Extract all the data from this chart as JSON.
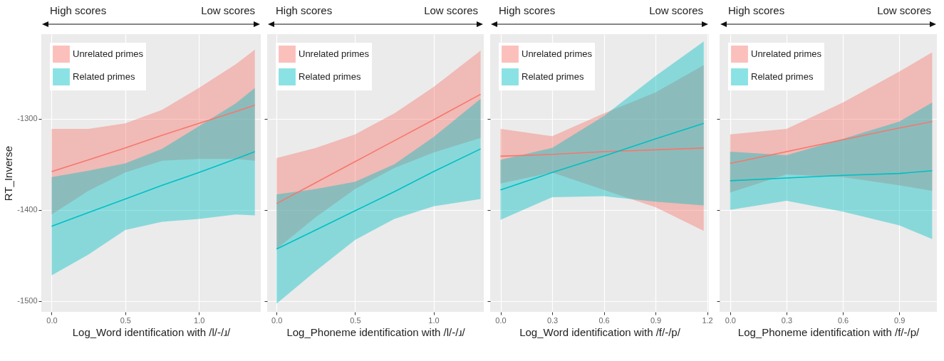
{
  "chart_data": [
    {
      "type": "line",
      "xlabel": "Log_Word identification with /l/-/ɹ/",
      "ylabel": "RT_Inverse",
      "annotations": [
        "High scores",
        "Low scores"
      ],
      "x": [
        0,
        0.25,
        0.5,
        0.75,
        1.0,
        1.25,
        1.38
      ],
      "series": [
        {
          "name": "Unrelated primes",
          "color": "#f8766d",
          "values": [
            -1358,
            -1345,
            -1332,
            -1318,
            -1305,
            -1292,
            -1285
          ],
          "upper": [
            -1311,
            -1311,
            -1305,
            -1290,
            -1266,
            -1240,
            -1224
          ],
          "lower": [
            -1405,
            -1379,
            -1359,
            -1346,
            -1344,
            -1344,
            -1346
          ]
        },
        {
          "name": "Related primes",
          "color": "#00bfc4",
          "values": [
            -1418,
            -1403,
            -1388,
            -1373,
            -1359,
            -1344,
            -1336
          ],
          "upper": [
            -1364,
            -1357,
            -1349,
            -1333,
            -1308,
            -1283,
            -1266
          ],
          "lower": [
            -1472,
            -1449,
            -1422,
            -1413,
            -1410,
            -1405,
            -1406
          ]
        }
      ],
      "xlim": [
        -0.07,
        1.42
      ],
      "xticks": [
        {
          "value": 0,
          "label": "0.0"
        },
        {
          "value": 0.5,
          "label": "0.5"
        },
        {
          "value": 1,
          "label": "1.0"
        }
      ],
      "ylim": [
        -1512,
        -1207
      ],
      "yticks": [
        -1500,
        -1400,
        -1300
      ],
      "grid": true,
      "legend": "top left"
    },
    {
      "type": "line",
      "xlabel": "Log_Phoneme identification with /l/-/ɹ/",
      "annotations": [
        "High scores",
        "Low scores"
      ],
      "x": [
        0,
        0.25,
        0.5,
        0.75,
        1.0,
        1.3
      ],
      "series": [
        {
          "name": "Unrelated primes",
          "color": "#f8766d",
          "values": [
            -1393,
            -1370,
            -1347,
            -1324,
            -1301,
            -1273
          ],
          "upper": [
            -1343,
            -1332,
            -1317,
            -1294,
            -1265,
            -1225
          ],
          "lower": [
            -1443,
            -1408,
            -1377,
            -1354,
            -1337,
            -1321
          ]
        },
        {
          "name": "Related primes",
          "color": "#00bfc4",
          "values": [
            -1443,
            -1422,
            -1401,
            -1380,
            -1358,
            -1333
          ],
          "upper": [
            -1383,
            -1377,
            -1369,
            -1350,
            -1320,
            -1278
          ],
          "lower": [
            -1503,
            -1467,
            -1433,
            -1410,
            -1396,
            -1388
          ]
        }
      ],
      "xlim": [
        -0.06,
        1.32
      ],
      "xticks": [
        {
          "value": 0,
          "label": "0.0"
        },
        {
          "value": 0.5,
          "label": "0.5"
        },
        {
          "value": 1,
          "label": "1.0"
        }
      ],
      "ylim": [
        -1512,
        -1207
      ],
      "yticks": [
        -1500,
        -1400,
        -1300
      ],
      "grid": true,
      "legend": "top left",
      "tick_labels": "x"
    },
    {
      "type": "line",
      "xlabel": "Log_Word identification with /f/-/p/",
      "annotations": [
        "High scores",
        "Low scores"
      ],
      "x": [
        0,
        0.3,
        0.6,
        0.9,
        1.18
      ],
      "series": [
        {
          "name": "Unrelated primes",
          "color": "#f8766d",
          "values": [
            -1341,
            -1339,
            -1336,
            -1334,
            -1332
          ],
          "upper": [
            -1311,
            -1319,
            -1294,
            -1271,
            -1241
          ],
          "lower": [
            -1371,
            -1359,
            -1378,
            -1397,
            -1423
          ]
        },
        {
          "name": "Related primes",
          "color": "#00bfc4",
          "values": [
            -1378,
            -1359,
            -1341,
            -1322,
            -1305
          ],
          "upper": [
            -1345,
            -1332,
            -1297,
            -1253,
            -1215
          ],
          "lower": [
            -1411,
            -1386,
            -1385,
            -1391,
            -1395
          ]
        }
      ],
      "xlim": [
        -0.06,
        1.21
      ],
      "xticks": [
        {
          "value": 0,
          "label": "0.0"
        },
        {
          "value": 0.3,
          "label": "0.3"
        },
        {
          "value": 0.6,
          "label": "0.6"
        },
        {
          "value": 0.9,
          "label": "0.9"
        },
        {
          "value": 1.2,
          "label": "1.2"
        }
      ],
      "ylim": [
        -1512,
        -1207
      ],
      "yticks": [
        -1500,
        -1400,
        -1300
      ],
      "grid": true,
      "legend": "top left",
      "tick_labels": "x"
    },
    {
      "type": "line",
      "xlabel": "Log_Phoneme identification with /f/-/p/",
      "annotations": [
        "High scores",
        "Low scores"
      ],
      "x": [
        0,
        0.3,
        0.6,
        0.9,
        1.075
      ],
      "series": [
        {
          "name": "Unrelated primes",
          "color": "#f8766d",
          "values": [
            -1349,
            -1336,
            -1323,
            -1310,
            -1303
          ],
          "upper": [
            -1317,
            -1311,
            -1282,
            -1248,
            -1227
          ],
          "lower": [
            -1381,
            -1361,
            -1364,
            -1373,
            -1379
          ]
        },
        {
          "name": "Related primes",
          "color": "#00bfc4",
          "values": [
            -1368,
            -1365,
            -1362,
            -1360,
            -1357
          ],
          "upper": [
            -1336,
            -1340,
            -1322,
            -1303,
            -1282
          ],
          "lower": [
            -1400,
            -1390,
            -1402,
            -1417,
            -1432
          ]
        }
      ],
      "xlim": [
        -0.056,
        1.1
      ],
      "xticks": [
        {
          "value": 0,
          "label": "0.0"
        },
        {
          "value": 0.3,
          "label": "0.3"
        },
        {
          "value": 0.6,
          "label": "0.6"
        },
        {
          "value": 0.9,
          "label": "0.9"
        }
      ],
      "ylim": [
        -1512,
        -1207
      ],
      "yticks": [
        -1500,
        -1400,
        -1300
      ],
      "grid": true,
      "legend": "top left",
      "tick_labels": "x"
    }
  ]
}
